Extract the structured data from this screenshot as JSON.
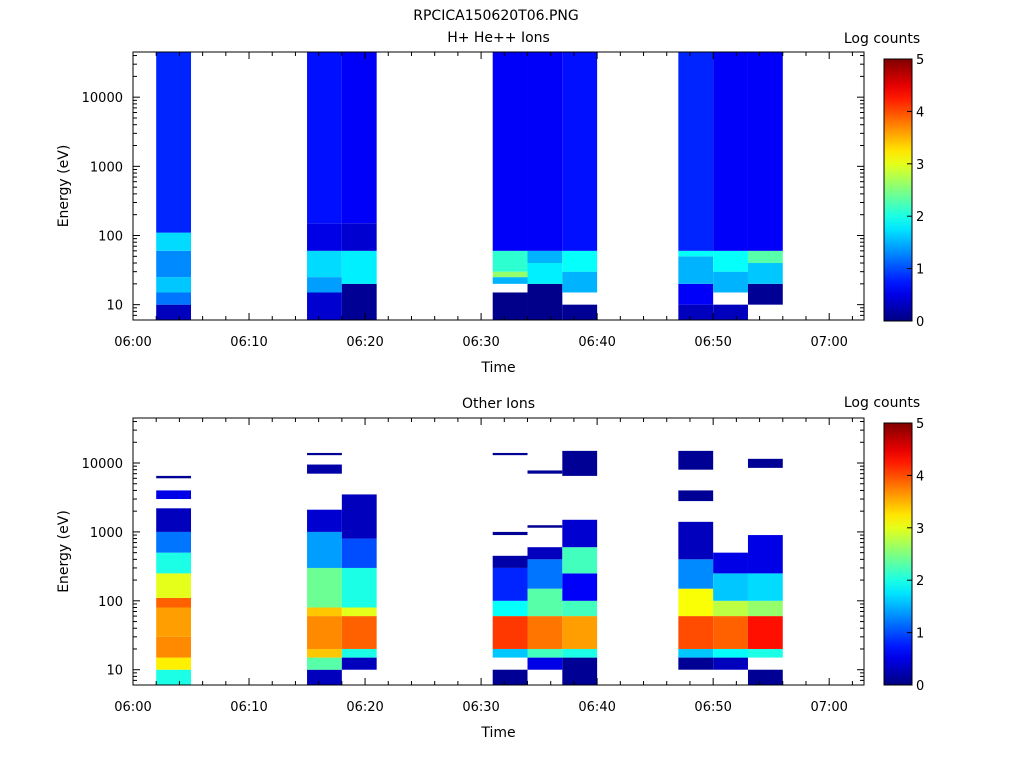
{
  "figure_title": "RPCICA150620T06.PNG",
  "chart_data": [
    {
      "type": "heatmap",
      "title": "H+ He++ Ions",
      "xlabel": "Time",
      "ylabel": "Energy (eV)",
      "xlim": [
        "06:00",
        "07:03"
      ],
      "ylim": [
        6,
        45000
      ],
      "yscale": "log",
      "xticks": [
        "06:00",
        "06:10",
        "06:20",
        "06:30",
        "06:40",
        "06:50",
        "07:00"
      ],
      "yticks": [
        "10",
        "100",
        "1000",
        "10000"
      ],
      "colorbar": {
        "label": "Log counts",
        "min": 0,
        "max": 5,
        "ticks": [
          "0",
          "1",
          "2",
          "3",
          "4",
          "5"
        ],
        "colormap": "jet"
      },
      "columns": [
        {
          "t_start": "06:02",
          "t_end": "06:05",
          "bands": [
            {
              "e_min": 6,
              "e_max": 10,
              "log_counts": 0.3
            },
            {
              "e_min": 10,
              "e_max": 15,
              "log_counts": 1.2
            },
            {
              "e_min": 15,
              "e_max": 25,
              "log_counts": 1.6
            },
            {
              "e_min": 25,
              "e_max": 60,
              "log_counts": 1.3
            },
            {
              "e_min": 60,
              "e_max": 110,
              "log_counts": 1.7
            },
            {
              "e_min": 110,
              "e_max": 45000,
              "log_counts": 0.8
            }
          ]
        },
        {
          "t_start": "06:15",
          "t_end": "06:18",
          "bands": [
            {
              "e_min": 6,
              "e_max": 15,
              "log_counts": 0.4
            },
            {
              "e_min": 15,
              "e_max": 25,
              "log_counts": 1.4
            },
            {
              "e_min": 25,
              "e_max": 60,
              "log_counts": 1.7
            },
            {
              "e_min": 60,
              "e_max": 150,
              "log_counts": 0.5
            },
            {
              "e_min": 150,
              "e_max": 45000,
              "log_counts": 0.7
            }
          ]
        },
        {
          "t_start": "06:18",
          "t_end": "06:21",
          "bands": [
            {
              "e_min": 6,
              "e_max": 20,
              "log_counts": 0.1
            },
            {
              "e_min": 20,
              "e_max": 60,
              "log_counts": 1.8
            },
            {
              "e_min": 60,
              "e_max": 150,
              "log_counts": 0.4
            },
            {
              "e_min": 150,
              "e_max": 45000,
              "log_counts": 0.6
            }
          ]
        },
        {
          "t_start": "06:31",
          "t_end": "06:34",
          "bands": [
            {
              "e_min": 6,
              "e_max": 15,
              "log_counts": 0.05
            },
            {
              "e_min": 20,
              "e_max": 25,
              "log_counts": 1.5
            },
            {
              "e_min": 25,
              "e_max": 30,
              "log_counts": 2.6
            },
            {
              "e_min": 30,
              "e_max": 60,
              "log_counts": 2.1
            },
            {
              "e_min": 60,
              "e_max": 45000,
              "log_counts": 0.6
            }
          ]
        },
        {
          "t_start": "06:34",
          "t_end": "06:37",
          "bands": [
            {
              "e_min": 6,
              "e_max": 20,
              "log_counts": 0.05
            },
            {
              "e_min": 20,
              "e_max": 40,
              "log_counts": 1.8
            },
            {
              "e_min": 40,
              "e_max": 60,
              "log_counts": 1.5
            },
            {
              "e_min": 60,
              "e_max": 45000,
              "log_counts": 0.6
            }
          ]
        },
        {
          "t_start": "06:37",
          "t_end": "06:40",
          "bands": [
            {
              "e_min": 6,
              "e_max": 10,
              "log_counts": 0.1
            },
            {
              "e_min": 15,
              "e_max": 30,
              "log_counts": 1.5
            },
            {
              "e_min": 30,
              "e_max": 60,
              "log_counts": 1.9
            },
            {
              "e_min": 60,
              "e_max": 45000,
              "log_counts": 0.7
            }
          ]
        },
        {
          "t_start": "06:47",
          "t_end": "06:50",
          "bands": [
            {
              "e_min": 6,
              "e_max": 10,
              "log_counts": 0.3
            },
            {
              "e_min": 10,
              "e_max": 20,
              "log_counts": 0.6
            },
            {
              "e_min": 20,
              "e_max": 50,
              "log_counts": 1.5
            },
            {
              "e_min": 50,
              "e_max": 60,
              "log_counts": 1.9
            },
            {
              "e_min": 60,
              "e_max": 45000,
              "log_counts": 0.8
            }
          ]
        },
        {
          "t_start": "06:50",
          "t_end": "06:53",
          "bands": [
            {
              "e_min": 6,
              "e_max": 10,
              "log_counts": 0.3
            },
            {
              "e_min": 15,
              "e_max": 30,
              "log_counts": 1.5
            },
            {
              "e_min": 30,
              "e_max": 60,
              "log_counts": 1.9
            },
            {
              "e_min": 60,
              "e_max": 45000,
              "log_counts": 0.6
            }
          ]
        },
        {
          "t_start": "06:53",
          "t_end": "06:56",
          "bands": [
            {
              "e_min": 10,
              "e_max": 20,
              "log_counts": 0.1
            },
            {
              "e_min": 20,
              "e_max": 40,
              "log_counts": 1.6
            },
            {
              "e_min": 40,
              "e_max": 60,
              "log_counts": 2.3
            },
            {
              "e_min": 60,
              "e_max": 45000,
              "log_counts": 0.6
            }
          ]
        }
      ]
    },
    {
      "type": "heatmap",
      "title": "Other Ions",
      "xlabel": "Time",
      "ylabel": "Energy (eV)",
      "xlim": [
        "06:00",
        "07:03"
      ],
      "ylim": [
        6,
        45000
      ],
      "yscale": "log",
      "xticks": [
        "06:00",
        "06:10",
        "06:20",
        "06:30",
        "06:40",
        "06:50",
        "07:00"
      ],
      "yticks": [
        "10",
        "100",
        "1000",
        "10000"
      ],
      "colorbar": {
        "label": "Log counts",
        "min": 0,
        "max": 5,
        "ticks": [
          "0",
          "1",
          "2",
          "3",
          "4",
          "5"
        ],
        "colormap": "jet"
      },
      "columns": [
        {
          "t_start": "06:02",
          "t_end": "06:05",
          "bands": [
            {
              "e_min": 6,
              "e_max": 10,
              "log_counts": 2.0
            },
            {
              "e_min": 10,
              "e_max": 15,
              "log_counts": 3.2
            },
            {
              "e_min": 15,
              "e_max": 30,
              "log_counts": 3.7
            },
            {
              "e_min": 30,
              "e_max": 80,
              "log_counts": 3.6
            },
            {
              "e_min": 80,
              "e_max": 110,
              "log_counts": 3.9
            },
            {
              "e_min": 110,
              "e_max": 250,
              "log_counts": 3.0
            },
            {
              "e_min": 250,
              "e_max": 500,
              "log_counts": 2.0
            },
            {
              "e_min": 500,
              "e_max": 1000,
              "log_counts": 1.2
            },
            {
              "e_min": 1000,
              "e_max": 2200,
              "log_counts": 0.3
            },
            {
              "e_min": 3000,
              "e_max": 4000,
              "log_counts": 0.5
            },
            {
              "e_min": 6000,
              "e_max": 6500,
              "log_counts": 0.1
            }
          ]
        },
        {
          "t_start": "06:15",
          "t_end": "06:18",
          "bands": [
            {
              "e_min": 6,
              "e_max": 10,
              "log_counts": 0.3
            },
            {
              "e_min": 10,
              "e_max": 15,
              "log_counts": 2.3
            },
            {
              "e_min": 15,
              "e_max": 20,
              "log_counts": 3.4
            },
            {
              "e_min": 20,
              "e_max": 60,
              "log_counts": 3.7
            },
            {
              "e_min": 60,
              "e_max": 80,
              "log_counts": 3.4
            },
            {
              "e_min": 80,
              "e_max": 300,
              "log_counts": 2.4
            },
            {
              "e_min": 300,
              "e_max": 1000,
              "log_counts": 1.4
            },
            {
              "e_min": 1000,
              "e_max": 2100,
              "log_counts": 0.4
            },
            {
              "e_min": 7000,
              "e_max": 9500,
              "log_counts": 0.2
            },
            {
              "e_min": 13000,
              "e_max": 14000,
              "log_counts": 0.1
            }
          ]
        },
        {
          "t_start": "06:18",
          "t_end": "06:21",
          "bands": [
            {
              "e_min": 10,
              "e_max": 15,
              "log_counts": 0.3
            },
            {
              "e_min": 15,
              "e_max": 20,
              "log_counts": 2.0
            },
            {
              "e_min": 20,
              "e_max": 60,
              "log_counts": 3.9
            },
            {
              "e_min": 60,
              "e_max": 80,
              "log_counts": 3.0
            },
            {
              "e_min": 80,
              "e_max": 300,
              "log_counts": 2.0
            },
            {
              "e_min": 300,
              "e_max": 800,
              "log_counts": 1.0
            },
            {
              "e_min": 800,
              "e_max": 3500,
              "log_counts": 0.3
            }
          ]
        },
        {
          "t_start": "06:31",
          "t_end": "06:34",
          "bands": [
            {
              "e_min": 6,
              "e_max": 10,
              "log_counts": 0.1
            },
            {
              "e_min": 15,
              "e_max": 20,
              "log_counts": 1.6
            },
            {
              "e_min": 20,
              "e_max": 60,
              "log_counts": 4.1
            },
            {
              "e_min": 60,
              "e_max": 100,
              "log_counts": 1.9
            },
            {
              "e_min": 100,
              "e_max": 300,
              "log_counts": 0.8
            },
            {
              "e_min": 300,
              "e_max": 450,
              "log_counts": 0.2
            },
            {
              "e_min": 900,
              "e_max": 1000,
              "log_counts": 0.1
            },
            {
              "e_min": 13000,
              "e_max": 14000,
              "log_counts": 0.1
            }
          ]
        },
        {
          "t_start": "06:34",
          "t_end": "06:37",
          "bands": [
            {
              "e_min": 10,
              "e_max": 15,
              "log_counts": 0.5
            },
            {
              "e_min": 15,
              "e_max": 20,
              "log_counts": 2.2
            },
            {
              "e_min": 20,
              "e_max": 60,
              "log_counts": 3.8
            },
            {
              "e_min": 60,
              "e_max": 150,
              "log_counts": 2.3
            },
            {
              "e_min": 150,
              "e_max": 400,
              "log_counts": 1.2
            },
            {
              "e_min": 400,
              "e_max": 600,
              "log_counts": 0.3
            },
            {
              "e_min": 1150,
              "e_max": 1250,
              "log_counts": 0.1
            },
            {
              "e_min": 7000,
              "e_max": 7800,
              "log_counts": 0.1
            }
          ]
        },
        {
          "t_start": "06:37",
          "t_end": "06:40",
          "bands": [
            {
              "e_min": 6,
              "e_max": 15,
              "log_counts": 0.1
            },
            {
              "e_min": 15,
              "e_max": 20,
              "log_counts": 2.0
            },
            {
              "e_min": 20,
              "e_max": 60,
              "log_counts": 3.6
            },
            {
              "e_min": 60,
              "e_max": 100,
              "log_counts": 2.2
            },
            {
              "e_min": 100,
              "e_max": 250,
              "log_counts": 0.6
            },
            {
              "e_min": 250,
              "e_max": 600,
              "log_counts": 2.2
            },
            {
              "e_min": 600,
              "e_max": 1500,
              "log_counts": 0.4
            },
            {
              "e_min": 6500,
              "e_max": 15000,
              "log_counts": 0.1
            }
          ]
        },
        {
          "t_start": "06:47",
          "t_end": "06:50",
          "bands": [
            {
              "e_min": 10,
              "e_max": 15,
              "log_counts": 0.1
            },
            {
              "e_min": 15,
              "e_max": 20,
              "log_counts": 1.6
            },
            {
              "e_min": 20,
              "e_max": 60,
              "log_counts": 4.0
            },
            {
              "e_min": 60,
              "e_max": 150,
              "log_counts": 3.1
            },
            {
              "e_min": 150,
              "e_max": 400,
              "log_counts": 1.3
            },
            {
              "e_min": 400,
              "e_max": 1400,
              "log_counts": 0.3
            },
            {
              "e_min": 2800,
              "e_max": 4000,
              "log_counts": 0.1
            },
            {
              "e_min": 8000,
              "e_max": 15000,
              "log_counts": 0.1
            }
          ]
        },
        {
          "t_start": "06:50",
          "t_end": "06:53",
          "bands": [
            {
              "e_min": 10,
              "e_max": 15,
              "log_counts": 0.3
            },
            {
              "e_min": 15,
              "e_max": 20,
              "log_counts": 1.9
            },
            {
              "e_min": 20,
              "e_max": 60,
              "log_counts": 3.9
            },
            {
              "e_min": 60,
              "e_max": 100,
              "log_counts": 2.8
            },
            {
              "e_min": 100,
              "e_max": 250,
              "log_counts": 1.6
            },
            {
              "e_min": 250,
              "e_max": 500,
              "log_counts": 0.5
            }
          ]
        },
        {
          "t_start": "06:53",
          "t_end": "06:56",
          "bands": [
            {
              "e_min": 6,
              "e_max": 10,
              "log_counts": 0.1
            },
            {
              "e_min": 15,
              "e_max": 20,
              "log_counts": 2.0
            },
            {
              "e_min": 20,
              "e_max": 60,
              "log_counts": 4.3
            },
            {
              "e_min": 60,
              "e_max": 100,
              "log_counts": 2.6
            },
            {
              "e_min": 100,
              "e_max": 250,
              "log_counts": 1.7
            },
            {
              "e_min": 250,
              "e_max": 900,
              "log_counts": 0.5
            },
            {
              "e_min": 8500,
              "e_max": 11500,
              "log_counts": 0.1
            }
          ]
        }
      ]
    }
  ]
}
